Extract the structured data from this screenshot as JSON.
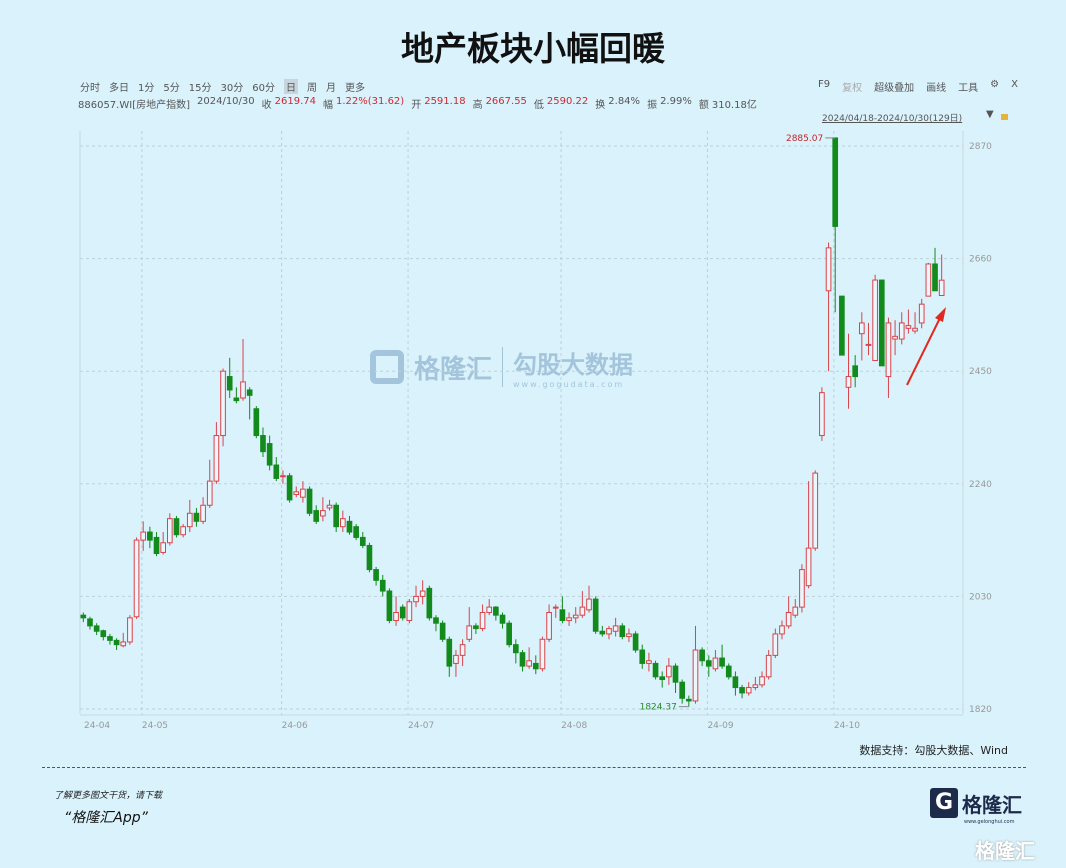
{
  "title": "地产板块小幅回暖",
  "toolbar": {
    "periods": [
      "分时",
      "多日",
      "1分",
      "5分",
      "15分",
      "30分",
      "60分",
      "日",
      "周",
      "月",
      "更多"
    ],
    "active": "日",
    "right": [
      "F9",
      "复权",
      "超级叠加",
      "画线",
      "工具"
    ],
    "settings_icon": "gear-icon",
    "close_label": "X"
  },
  "info": {
    "code": "886057.WI[房地产指数]",
    "date": "2024/10/30",
    "fields": [
      {
        "k": "收",
        "v": "2619.74",
        "red": true
      },
      {
        "k": "幅",
        "v": "1.22%(31.62)",
        "red": true
      },
      {
        "k": "开",
        "v": "2591.18",
        "red": true
      },
      {
        "k": "高",
        "v": "2667.55",
        "red": true
      },
      {
        "k": "低",
        "v": "2590.22",
        "red": true
      },
      {
        "k": "换",
        "v": "2.84%",
        "red": false
      },
      {
        "k": "振",
        "v": "2.99%",
        "red": false
      },
      {
        "k": "额",
        "v": "310.18亿",
        "red": false
      }
    ]
  },
  "range_label": "2024/04/18-2024/10/30(129日)",
  "watermark": {
    "brand": "格隆汇",
    "product": "勾股大数据",
    "url": "www.gogudata.com"
  },
  "source": "数据支持：勾股大数据、Wind",
  "promo": {
    "line1": "了解更多图文干货，请下载",
    "line2": "“格隆汇App”"
  },
  "logo": {
    "text": "格隆汇",
    "url": "www.gelonghui.com"
  },
  "colors": {
    "up": "#d9434a",
    "down": "#138a1c",
    "background": "#d9f2fc",
    "arrow": "#e02a20"
  },
  "chart_data": {
    "type": "candlestick",
    "ohlc_order": [
      "open",
      "close",
      "high",
      "low"
    ],
    "ylim": [
      1820,
      2870
    ],
    "y_ticks": [
      2870,
      2660,
      2450,
      2240,
      2030,
      1820
    ],
    "x_ticks": [
      {
        "label": "24-04",
        "index": 0
      },
      {
        "label": "24-05",
        "index": 9
      },
      {
        "label": "24-06",
        "index": 30
      },
      {
        "label": "24-07",
        "index": 49
      },
      {
        "label": "24-08",
        "index": 72
      },
      {
        "label": "24-09",
        "index": 94
      },
      {
        "label": "24-10",
        "index": 113
      }
    ],
    "grid": true,
    "annotations": [
      {
        "label": "2885.07",
        "type": "max",
        "index": 113
      },
      {
        "label": "1824.37",
        "type": "min",
        "index": 91
      }
    ],
    "candles": [
      [
        1995,
        1990,
        2000,
        1982
      ],
      [
        1988,
        1975,
        1992,
        1968
      ],
      [
        1975,
        1965,
        1980,
        1958
      ],
      [
        1966,
        1955,
        1968,
        1948
      ],
      [
        1955,
        1948,
        1960,
        1940
      ],
      [
        1948,
        1940,
        1952,
        1930
      ],
      [
        1938,
        1945,
        1962,
        1935
      ],
      [
        1945,
        1990,
        1995,
        1940
      ],
      [
        1992,
        2135,
        2140,
        1988
      ],
      [
        2135,
        2150,
        2170,
        2115
      ],
      [
        2150,
        2135,
        2160,
        2120
      ],
      [
        2140,
        2110,
        2150,
        2105
      ],
      [
        2112,
        2130,
        2150,
        2108
      ],
      [
        2130,
        2175,
        2185,
        2125
      ],
      [
        2175,
        2145,
        2180,
        2140
      ],
      [
        2145,
        2160,
        2165,
        2140
      ],
      [
        2160,
        2185,
        2210,
        2150
      ],
      [
        2185,
        2170,
        2195,
        2160
      ],
      [
        2170,
        2200,
        2215,
        2165
      ],
      [
        2200,
        2245,
        2285,
        2195
      ],
      [
        2245,
        2330,
        2355,
        2240
      ],
      [
        2330,
        2450,
        2455,
        2310
      ],
      [
        2440,
        2415,
        2475,
        2400
      ],
      [
        2400,
        2395,
        2420,
        2390
      ],
      [
        2400,
        2430,
        2510,
        2395
      ],
      [
        2415,
        2405,
        2420,
        2360
      ],
      [
        2380,
        2330,
        2385,
        2325
      ],
      [
        2330,
        2300,
        2345,
        2290
      ],
      [
        2315,
        2275,
        2330,
        2265
      ],
      [
        2275,
        2250,
        2290,
        2245
      ],
      [
        2255,
        2255,
        2265,
        2240
      ],
      [
        2255,
        2210,
        2260,
        2205
      ],
      [
        2220,
        2225,
        2235,
        2215
      ],
      [
        2215,
        2230,
        2245,
        2205
      ],
      [
        2230,
        2185,
        2235,
        2180
      ],
      [
        2190,
        2170,
        2200,
        2165
      ],
      [
        2180,
        2190,
        2215,
        2170
      ],
      [
        2195,
        2200,
        2210,
        2190
      ],
      [
        2200,
        2160,
        2205,
        2150
      ],
      [
        2160,
        2175,
        2190,
        2150
      ],
      [
        2170,
        2150,
        2180,
        2145
      ],
      [
        2160,
        2140,
        2165,
        2135
      ],
      [
        2140,
        2125,
        2150,
        2120
      ],
      [
        2125,
        2080,
        2130,
        2075
      ],
      [
        2080,
        2060,
        2085,
        2050
      ],
      [
        2060,
        2040,
        2070,
        2030
      ],
      [
        2040,
        1985,
        2045,
        1980
      ],
      [
        1985,
        2000,
        2030,
        1975
      ],
      [
        2010,
        1990,
        2015,
        1985
      ],
      [
        1985,
        2020,
        2025,
        1980
      ],
      [
        2020,
        2030,
        2050,
        2010
      ],
      [
        2030,
        2040,
        2060,
        2015
      ],
      [
        2045,
        1990,
        2050,
        1985
      ],
      [
        1990,
        1980,
        1995,
        1965
      ],
      [
        1980,
        1950,
        1985,
        1945
      ],
      [
        1950,
        1900,
        1955,
        1880
      ],
      [
        1905,
        1920,
        1930,
        1880
      ],
      [
        1920,
        1940,
        1950,
        1900
      ],
      [
        1950,
        1975,
        2010,
        1945
      ],
      [
        1975,
        1970,
        1980,
        1960
      ],
      [
        1970,
        2000,
        2015,
        1965
      ],
      [
        2000,
        2010,
        2025,
        1995
      ],
      [
        2010,
        1995,
        2012,
        1985
      ],
      [
        1995,
        1980,
        2000,
        1970
      ],
      [
        1980,
        1940,
        1985,
        1935
      ],
      [
        1940,
        1925,
        1950,
        1905
      ],
      [
        1925,
        1900,
        1930,
        1890
      ],
      [
        1900,
        1910,
        1935,
        1895
      ],
      [
        1905,
        1895,
        1920,
        1885
      ],
      [
        1895,
        1950,
        1955,
        1890
      ],
      [
        1950,
        2000,
        2015,
        1945
      ],
      [
        2010,
        2010,
        2015,
        1990
      ],
      [
        2005,
        1985,
        2030,
        1980
      ],
      [
        1985,
        1990,
        2000,
        1975
      ],
      [
        1990,
        1995,
        2010,
        1980
      ],
      [
        1995,
        2010,
        2040,
        1990
      ],
      [
        2005,
        2025,
        2050,
        2000
      ],
      [
        2025,
        1965,
        2030,
        1960
      ],
      [
        1965,
        1960,
        1975,
        1955
      ],
      [
        1960,
        1970,
        1975,
        1950
      ],
      [
        1965,
        1975,
        1990,
        1955
      ],
      [
        1975,
        1955,
        1980,
        1950
      ],
      [
        1955,
        1960,
        1970,
        1945
      ],
      [
        1960,
        1930,
        1965,
        1925
      ],
      [
        1930,
        1905,
        1940,
        1895
      ],
      [
        1905,
        1910,
        1925,
        1890
      ],
      [
        1905,
        1880,
        1910,
        1875
      ],
      [
        1880,
        1875,
        1890,
        1860
      ],
      [
        1880,
        1900,
        1915,
        1865
      ],
      [
        1900,
        1870,
        1905,
        1850
      ],
      [
        1870,
        1840,
        1875,
        1830
      ],
      [
        1838,
        1835,
        1845,
        1824.37
      ],
      [
        1835,
        1930,
        1975,
        1830
      ],
      [
        1930,
        1910,
        1935,
        1900
      ],
      [
        1910,
        1900,
        1920,
        1880
      ],
      [
        1895,
        1915,
        1930,
        1890
      ],
      [
        1915,
        1900,
        1940,
        1895
      ],
      [
        1900,
        1880,
        1905,
        1875
      ],
      [
        1880,
        1860,
        1890,
        1845
      ],
      [
        1860,
        1850,
        1865,
        1840
      ],
      [
        1850,
        1860,
        1870,
        1845
      ],
      [
        1860,
        1865,
        1880,
        1855
      ],
      [
        1865,
        1880,
        1890,
        1860
      ],
      [
        1880,
        1920,
        1930,
        1875
      ],
      [
        1920,
        1960,
        1970,
        1915
      ],
      [
        1960,
        1975,
        1985,
        1950
      ],
      [
        1975,
        2000,
        2030,
        1970
      ],
      [
        1995,
        2010,
        2025,
        1990
      ],
      [
        2010,
        2080,
        2090,
        2000
      ],
      [
        2050,
        2120,
        2245,
        2045
      ],
      [
        2120,
        2260,
        2265,
        2115
      ],
      [
        2330,
        2410,
        2420,
        2320
      ],
      [
        2600,
        2680,
        2690,
        2450
      ],
      [
        2885.07,
        2720,
        2885.07,
        2560
      ],
      [
        2590,
        2480,
        2590,
        2480
      ],
      [
        2420,
        2440,
        2520,
        2380
      ],
      [
        2460,
        2440,
        2480,
        2420
      ],
      [
        2520,
        2540,
        2560,
        2470
      ],
      [
        2500,
        2500,
        2540,
        2480
      ],
      [
        2470,
        2620,
        2630,
        2470
      ],
      [
        2620,
        2460,
        2620,
        2460
      ],
      [
        2440,
        2540,
        2550,
        2400
      ],
      [
        2510,
        2515,
        2545,
        2480
      ],
      [
        2510,
        2540,
        2560,
        2500
      ],
      [
        2530,
        2535,
        2565,
        2520
      ],
      [
        2525,
        2530,
        2560,
        2520
      ],
      [
        2540,
        2575,
        2585,
        2530
      ],
      [
        2590,
        2650,
        2652,
        2590
      ],
      [
        2650,
        2600,
        2680,
        2600
      ],
      [
        2591.18,
        2619.74,
        2667.55,
        2590.22
      ]
    ]
  }
}
